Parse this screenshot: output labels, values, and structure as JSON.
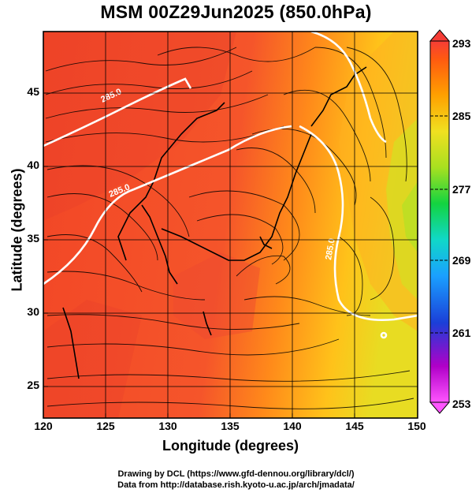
{
  "title": "MSM 00Z29Jun2025 (850.0hPa)",
  "axes": {
    "xlabel": "Longitude (degrees)",
    "ylabel": "Latitude  (degrees)",
    "xticks": [
      "120",
      "125",
      "130",
      "135",
      "140",
      "145",
      "150"
    ],
    "yticks": [
      "25",
      "30",
      "35",
      "40",
      "45"
    ],
    "xlim": [
      120,
      150
    ],
    "ylim": [
      22.4,
      47.6
    ]
  },
  "colorbar": {
    "ticks": [
      "293",
      "285",
      "277",
      "269",
      "261",
      "253"
    ],
    "range": [
      253,
      293
    ],
    "colors": [
      "#ff55ff",
      "#7a00d8",
      "#1b3fd8",
      "#1aa0ff",
      "#10d8c8",
      "#13d440",
      "#a8e020",
      "#f0e020",
      "#ffa000",
      "#ff5a10",
      "#f53d36"
    ]
  },
  "contours": [
    {
      "label": "285.0",
      "color": "#ffffff"
    }
  ],
  "credits": {
    "line1": "Drawing by DCL (https://www.gfd-dennou.org/library/dcl/)",
    "line2": "Data from http://database.rish.kyoto-u.ac.jp/arch/jmadata/"
  }
}
